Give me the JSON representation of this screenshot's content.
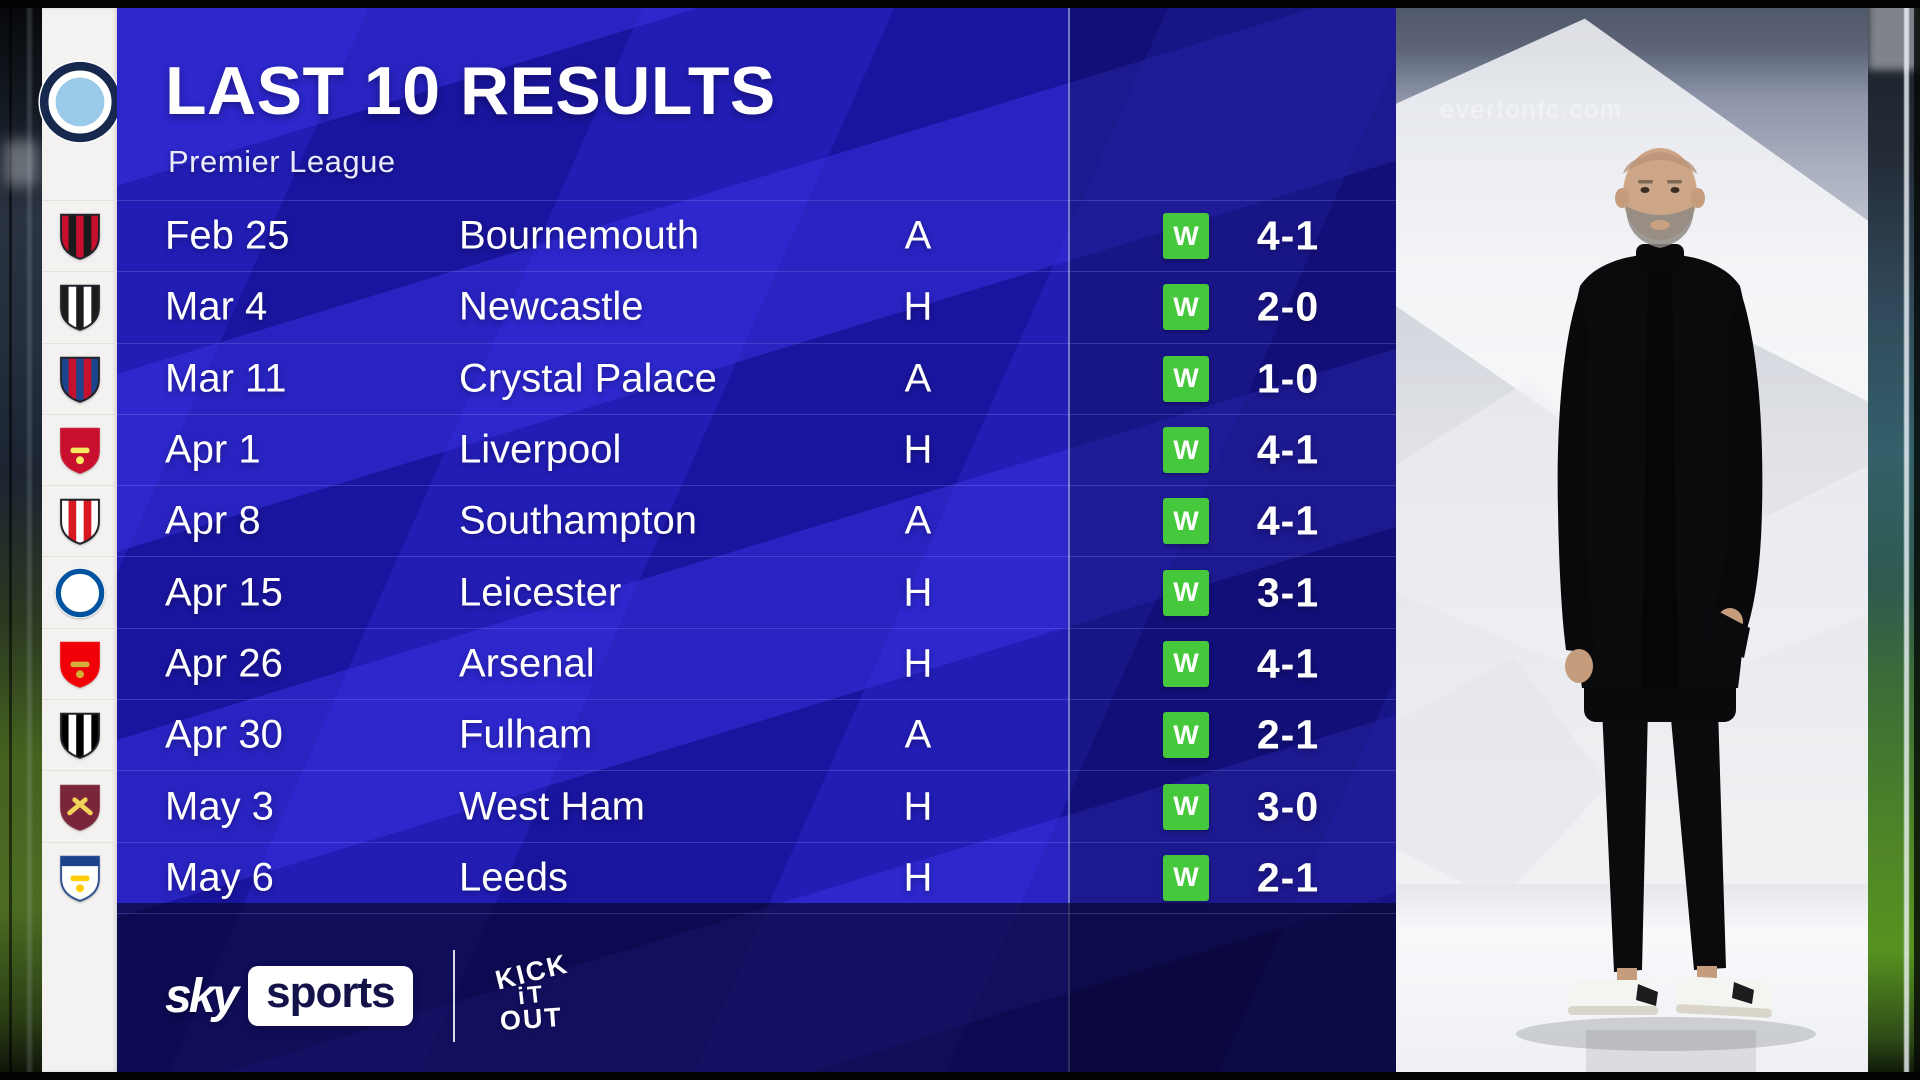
{
  "header": {
    "title": "LAST 10 RESULTS",
    "subtitle": "Premier League",
    "team": "Manchester City"
  },
  "club_badge": {
    "name": "manchester-city",
    "style": "circle",
    "colors": [
      "#9bc9e8",
      "#17294e"
    ]
  },
  "results": [
    {
      "date": "Feb 25",
      "opponent": "Bournemouth",
      "venue": "A",
      "result": "W",
      "score": "4-1",
      "badge": {
        "name": "bournemouth",
        "style": "stripes",
        "colors": [
          "#c8102e",
          "#1a1a1a"
        ]
      }
    },
    {
      "date": "Mar 4",
      "opponent": "Newcastle",
      "venue": "H",
      "result": "W",
      "score": "2-0",
      "badge": {
        "name": "newcastle",
        "style": "stripes",
        "colors": [
          "#1b1b1b",
          "#ffffff"
        ]
      }
    },
    {
      "date": "Mar 11",
      "opponent": "Crystal Palace",
      "venue": "A",
      "result": "W",
      "score": "1-0",
      "badge": {
        "name": "crystal-palace",
        "style": "stripes",
        "colors": [
          "#1b458f",
          "#c4122e"
        ]
      }
    },
    {
      "date": "Apr 1",
      "opponent": "Liverpool",
      "venue": "H",
      "result": "W",
      "score": "4-1",
      "badge": {
        "name": "liverpool",
        "style": "crest",
        "colors": [
          "#c8102e",
          "#c8102e"
        ],
        "accent": "#f6eb61"
      }
    },
    {
      "date": "Apr 8",
      "opponent": "Southampton",
      "venue": "A",
      "result": "W",
      "score": "4-1",
      "badge": {
        "name": "southampton",
        "style": "stripes",
        "colors": [
          "#ffffff",
          "#d71920"
        ]
      }
    },
    {
      "date": "Apr 15",
      "opponent": "Leicester",
      "venue": "H",
      "result": "W",
      "score": "3-1",
      "badge": {
        "name": "leicester",
        "style": "circle",
        "colors": [
          "#ffffff",
          "#0053a0"
        ]
      }
    },
    {
      "date": "Apr 26",
      "opponent": "Arsenal",
      "venue": "H",
      "result": "W",
      "score": "4-1",
      "badge": {
        "name": "arsenal",
        "style": "crest",
        "colors": [
          "#ef0107",
          "#ef0107"
        ],
        "accent": "#d4af37"
      }
    },
    {
      "date": "Apr 30",
      "opponent": "Fulham",
      "venue": "A",
      "result": "W",
      "score": "2-1",
      "badge": {
        "name": "fulham",
        "style": "stripes",
        "colors": [
          "#000000",
          "#ffffff"
        ]
      }
    },
    {
      "date": "May 3",
      "opponent": "West Ham",
      "venue": "H",
      "result": "W",
      "score": "3-0",
      "badge": {
        "name": "west-ham",
        "style": "crest",
        "colors": [
          "#7a263a",
          "#7a263a"
        ],
        "accent": "#f3d459",
        "cross": true
      }
    },
    {
      "date": "May 6",
      "opponent": "Leeds",
      "venue": "H",
      "result": "W",
      "score": "2-1",
      "badge": {
        "name": "leeds",
        "style": "crest",
        "colors": [
          "#fdfdfb",
          "#1d428a"
        ],
        "accent": "#ffcd00"
      }
    }
  ],
  "footer": {
    "sky": "sky",
    "sports": "sports",
    "kick_it_out": [
      "KICK",
      "iT",
      "OUT"
    ]
  },
  "background": {
    "stadium_ad": "evertonfc.com"
  },
  "colors": {
    "panel_base": "#1a159e",
    "panel_stripe": "#3831e4",
    "win_badge": "#46c83c",
    "text": "#ffffff",
    "sports_box_text": "#141349"
  }
}
